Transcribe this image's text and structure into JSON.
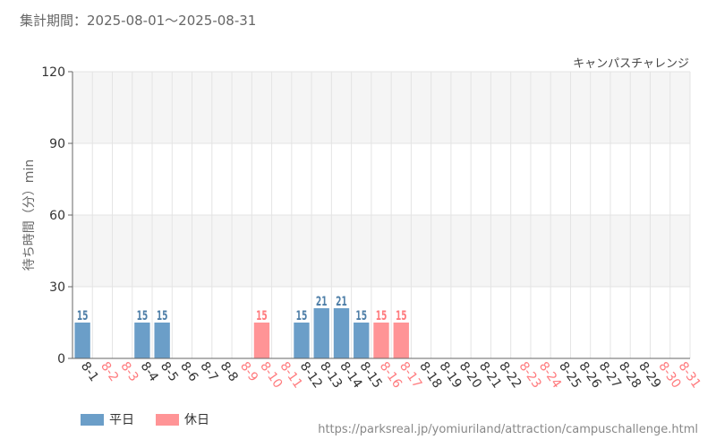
{
  "header": {
    "period_label": "集計期間：2025-08-01～2025-08-31",
    "attraction_name": "キャンパスチャレンジ"
  },
  "legend": {
    "weekday_label": "平日",
    "holiday_label": "休日"
  },
  "footer": {
    "source_url": "https://parksreal.jp/yomiuriland/attraction/campuschallenge.html"
  },
  "colors": {
    "weekday": "#6b9ec8",
    "holiday": "#ff9496",
    "weekday_text": "#4f7fa8",
    "holiday_text": "#ff7b7e",
    "band": "#f5f5f5",
    "grid": "#e4e4e4"
  },
  "chart_data": {
    "type": "bar",
    "title": "",
    "xlabel": "",
    "ylabel": "待ち時間（分）min",
    "ylim": [
      0,
      120
    ],
    "yticks": [
      0,
      30,
      60,
      90,
      120
    ],
    "categories": [
      "8-1",
      "8-2",
      "8-3",
      "8-4",
      "8-5",
      "8-6",
      "8-7",
      "8-8",
      "8-9",
      "8-10",
      "8-11",
      "8-12",
      "8-13",
      "8-14",
      "8-15",
      "8-16",
      "8-17",
      "8-18",
      "8-19",
      "8-20",
      "8-21",
      "8-22",
      "8-23",
      "8-24",
      "8-25",
      "8-26",
      "8-27",
      "8-28",
      "8-29",
      "8-30",
      "8-31"
    ],
    "day_type": [
      "weekday",
      "holiday",
      "holiday",
      "weekday",
      "weekday",
      "weekday",
      "weekday",
      "weekday",
      "holiday",
      "holiday",
      "holiday",
      "weekday",
      "weekday",
      "weekday",
      "weekday",
      "holiday",
      "holiday",
      "weekday",
      "weekday",
      "weekday",
      "weekday",
      "weekday",
      "holiday",
      "holiday",
      "weekday",
      "weekday",
      "weekday",
      "weekday",
      "weekday",
      "holiday",
      "holiday"
    ],
    "series": [
      {
        "name": "",
        "values": [
          15,
          null,
          null,
          15,
          15,
          null,
          null,
          null,
          null,
          15,
          null,
          15,
          21,
          21,
          15,
          15,
          15,
          null,
          null,
          null,
          null,
          null,
          null,
          null,
          null,
          null,
          null,
          null,
          null,
          null,
          null
        ]
      }
    ],
    "grid": true,
    "legend_position": "bottom-left"
  }
}
